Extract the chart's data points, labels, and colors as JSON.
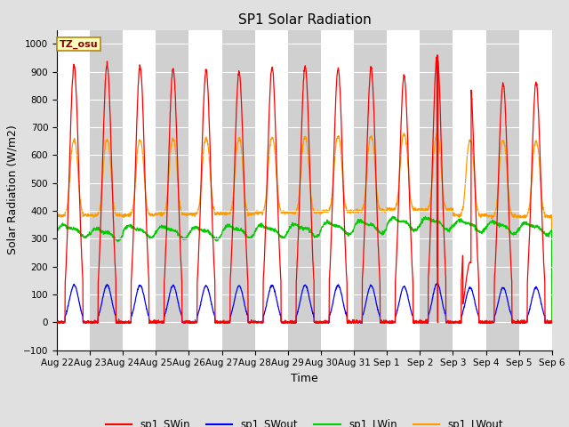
{
  "title": "SP1 Solar Radiation",
  "xlabel": "Time",
  "ylabel": "Solar Radiation (W/m2)",
  "ylim": [
    -100,
    1050
  ],
  "tick_labels": [
    "Aug 22",
    "Aug 23",
    "Aug 24",
    "Aug 25",
    "Aug 26",
    "Aug 27",
    "Aug 28",
    "Aug 29",
    "Aug 30",
    "Aug 31",
    "Sep 1",
    "Sep 2",
    "Sep 3",
    "Sep 4",
    "Sep 5",
    "Sep 6"
  ],
  "tz_label": "TZ_osu",
  "legend_entries": [
    "sp1_SWin",
    "sp1_SWout",
    "sp1_LWin",
    "sp1_LWout"
  ],
  "line_colors": [
    "#ff0000",
    "#0000ff",
    "#00cc00",
    "#ff9900"
  ],
  "bg_color": "#e0e0e0",
  "plot_bg_color": "#ffffff",
  "stripe_color": "#d0d0d0",
  "title_fontsize": 11,
  "axis_fontsize": 9,
  "tick_fontsize": 7.5
}
